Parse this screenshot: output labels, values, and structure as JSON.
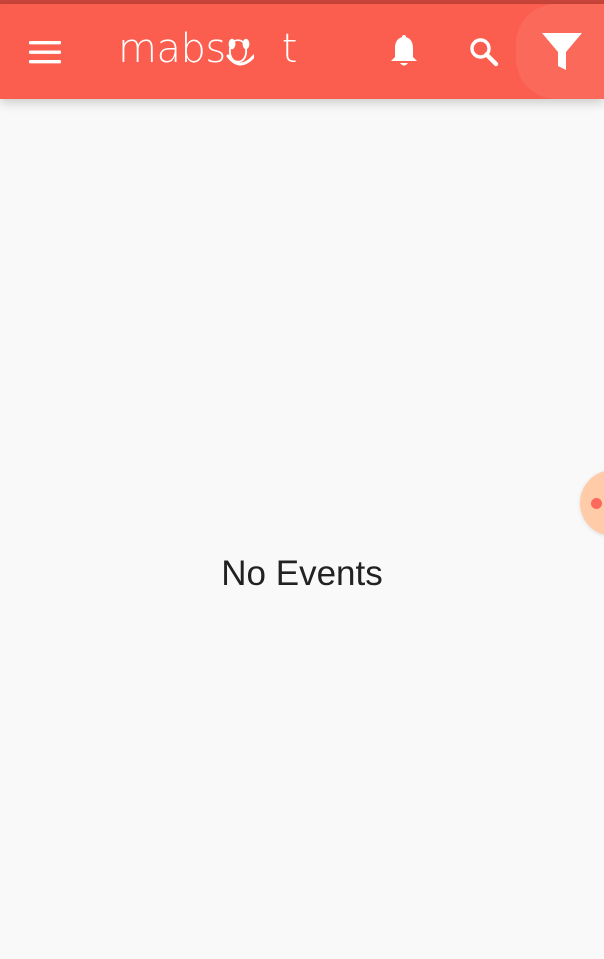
{
  "app": {
    "logo_text": "mabso",
    "logo_text_tail": "t"
  },
  "toolbar": {
    "menu_icon": "hamburger-menu-icon",
    "notifications_icon": "bell-icon",
    "search_icon": "search-icon",
    "filter_icon": "filter-icon"
  },
  "main": {
    "empty_message": "No Events"
  },
  "colors": {
    "toolbar_bg": "#fb5e4e",
    "status_strip": "#c9453a",
    "page_bg": "#f9f9f9",
    "text": "#222222",
    "floating_handle": "#ffcba8"
  }
}
